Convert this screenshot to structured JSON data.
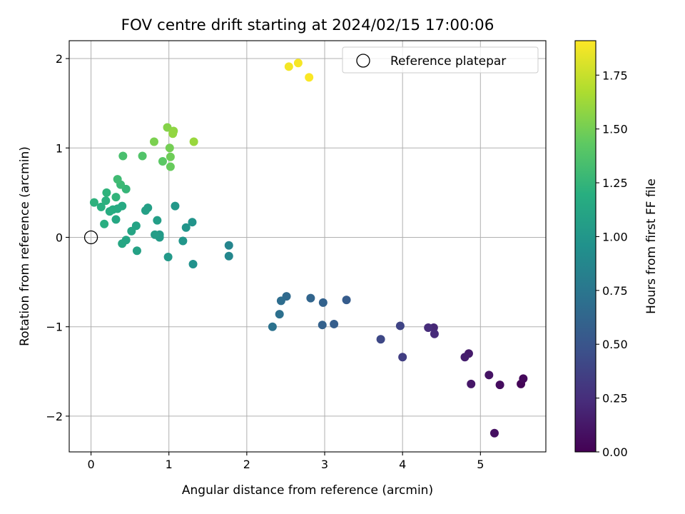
{
  "chart_data": {
    "type": "scatter",
    "title": "FOV centre drift starting at 2024/02/15 17:00:06",
    "xlabel": "Angular distance from reference (arcmin)",
    "ylabel": "Rotation from reference (arcmin)",
    "xlim": [
      -0.28,
      5.84
    ],
    "ylim": [
      -2.4,
      2.2
    ],
    "xticks": [
      0,
      1,
      2,
      3,
      4,
      5
    ],
    "yticks": [
      -2,
      -1,
      0,
      1,
      2
    ],
    "ytick_labels": [
      "−2",
      "−1",
      "0",
      "1",
      "2"
    ],
    "grid": true,
    "legend": {
      "placement": "top-right",
      "entries": [
        {
          "label": "Reference platepar",
          "marker": "open-circle",
          "x": 0,
          "y": 0
        }
      ]
    },
    "colorbar": {
      "label": "Hours from first FF file",
      "range": [
        0,
        1.91
      ],
      "ticks": [
        0.0,
        0.25,
        0.5,
        0.75,
        1.0,
        1.25,
        1.5,
        1.75
      ],
      "tick_labels": [
        "0.00",
        "0.25",
        "0.50",
        "0.75",
        "1.00",
        "1.25",
        "1.50",
        "1.75"
      ],
      "colormap": "viridis"
    },
    "points": [
      {
        "x": 5.52,
        "y": -1.64,
        "c": 0.02
      },
      {
        "x": 5.55,
        "y": -1.58,
        "c": 0.04
      },
      {
        "x": 5.25,
        "y": -1.65,
        "c": 0.06
      },
      {
        "x": 5.18,
        "y": -2.19,
        "c": 0.08
      },
      {
        "x": 5.11,
        "y": -1.54,
        "c": 0.1
      },
      {
        "x": 4.88,
        "y": -1.64,
        "c": 0.12
      },
      {
        "x": 4.85,
        "y": -1.3,
        "c": 0.14
      },
      {
        "x": 4.8,
        "y": -1.34,
        "c": 0.16
      },
      {
        "x": 4.4,
        "y": -1.01,
        "c": 0.21
      },
      {
        "x": 4.41,
        "y": -1.08,
        "c": 0.23
      },
      {
        "x": 4.33,
        "y": -1.01,
        "c": 0.24
      },
      {
        "x": 4.0,
        "y": -1.34,
        "c": 0.35
      },
      {
        "x": 3.97,
        "y": -0.99,
        "c": 0.39
      },
      {
        "x": 3.72,
        "y": -1.14,
        "c": 0.41
      },
      {
        "x": 3.28,
        "y": -0.7,
        "c": 0.55
      },
      {
        "x": 3.12,
        "y": -0.97,
        "c": 0.57
      },
      {
        "x": 2.97,
        "y": -0.98,
        "c": 0.59
      },
      {
        "x": 2.98,
        "y": -0.73,
        "c": 0.6
      },
      {
        "x": 2.82,
        "y": -0.68,
        "c": 0.62
      },
      {
        "x": 2.51,
        "y": -0.66,
        "c": 0.66
      },
      {
        "x": 2.44,
        "y": -0.71,
        "c": 0.68
      },
      {
        "x": 2.42,
        "y": -0.86,
        "c": 0.7
      },
      {
        "x": 2.33,
        "y": -1.0,
        "c": 0.72
      },
      {
        "x": 1.77,
        "y": -0.09,
        "c": 0.86
      },
      {
        "x": 1.77,
        "y": -0.21,
        "c": 0.88
      },
      {
        "x": 1.31,
        "y": -0.3,
        "c": 0.96
      },
      {
        "x": 1.3,
        "y": 0.17,
        "c": 0.98
      },
      {
        "x": 1.22,
        "y": 0.11,
        "c": 0.99
      },
      {
        "x": 1.18,
        "y": -0.04,
        "c": 1.0
      },
      {
        "x": 1.08,
        "y": 0.35,
        "c": 1.01
      },
      {
        "x": 0.99,
        "y": -0.22,
        "c": 1.02
      },
      {
        "x": 0.88,
        "y": 0.03,
        "c": 1.03
      },
      {
        "x": 0.88,
        "y": 0.0,
        "c": 1.04
      },
      {
        "x": 0.82,
        "y": 0.03,
        "c": 1.05
      },
      {
        "x": 0.85,
        "y": 0.19,
        "c": 1.06
      },
      {
        "x": 0.73,
        "y": 0.33,
        "c": 1.07
      },
      {
        "x": 0.7,
        "y": 0.3,
        "c": 1.08
      },
      {
        "x": 0.59,
        "y": -0.15,
        "c": 1.09
      },
      {
        "x": 0.58,
        "y": 0.13,
        "c": 1.1
      },
      {
        "x": 0.52,
        "y": 0.07,
        "c": 1.11
      },
      {
        "x": 0.45,
        "y": -0.03,
        "c": 1.12
      },
      {
        "x": 0.4,
        "y": -0.07,
        "c": 1.13
      },
      {
        "x": 0.32,
        "y": 0.2,
        "c": 1.14
      },
      {
        "x": 0.4,
        "y": 0.35,
        "c": 1.15
      },
      {
        "x": 0.34,
        "y": 0.32,
        "c": 1.16
      },
      {
        "x": 0.28,
        "y": 0.31,
        "c": 1.17
      },
      {
        "x": 0.24,
        "y": 0.29,
        "c": 1.18
      },
      {
        "x": 0.17,
        "y": 0.15,
        "c": 1.19
      },
      {
        "x": 0.13,
        "y": 0.34,
        "c": 1.2
      },
      {
        "x": 0.19,
        "y": 0.41,
        "c": 1.21
      },
      {
        "x": 0.04,
        "y": 0.39,
        "c": 1.22
      },
      {
        "x": 0.2,
        "y": 0.5,
        "c": 1.23
      },
      {
        "x": 0.32,
        "y": 0.45,
        "c": 1.24
      },
      {
        "x": 0.45,
        "y": 0.54,
        "c": 1.26
      },
      {
        "x": 0.38,
        "y": 0.59,
        "c": 1.28
      },
      {
        "x": 0.34,
        "y": 0.65,
        "c": 1.3
      },
      {
        "x": 0.41,
        "y": 0.91,
        "c": 1.34
      },
      {
        "x": 0.66,
        "y": 0.91,
        "c": 1.38
      },
      {
        "x": 0.92,
        "y": 0.85,
        "c": 1.42
      },
      {
        "x": 1.02,
        "y": 0.79,
        "c": 1.46
      },
      {
        "x": 1.02,
        "y": 0.9,
        "c": 1.48
      },
      {
        "x": 1.01,
        "y": 1.0,
        "c": 1.5
      },
      {
        "x": 0.81,
        "y": 1.07,
        "c": 1.52
      },
      {
        "x": 0.98,
        "y": 1.23,
        "c": 1.55
      },
      {
        "x": 1.06,
        "y": 1.19,
        "c": 1.58
      },
      {
        "x": 1.05,
        "y": 1.16,
        "c": 1.59
      },
      {
        "x": 1.32,
        "y": 1.07,
        "c": 1.61
      },
      {
        "x": 2.54,
        "y": 1.91,
        "c": 1.88
      },
      {
        "x": 2.66,
        "y": 1.95,
        "c": 1.89
      },
      {
        "x": 2.8,
        "y": 1.79,
        "c": 1.9
      }
    ]
  }
}
